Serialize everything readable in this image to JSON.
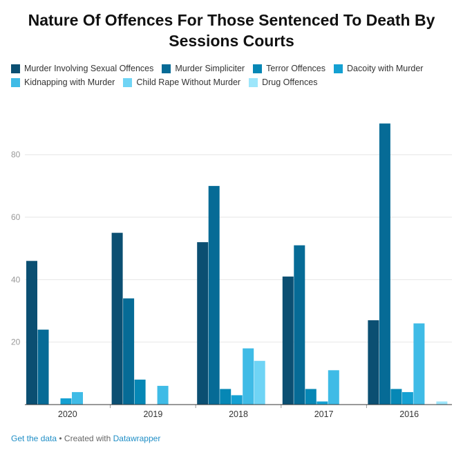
{
  "chart_data": {
    "type": "bar",
    "title": "Nature Of Offences For Those Sentenced To Death By Sessions Courts",
    "categories": [
      "2020",
      "2019",
      "2018",
      "2017",
      "2016"
    ],
    "series": [
      {
        "name": "Murder Involving Sexual Offences",
        "color": "#0b4f72",
        "values": [
          46,
          55,
          52,
          41,
          27
        ]
      },
      {
        "name": "Murder Simpliciter",
        "color": "#066b96",
        "values": [
          24,
          34,
          70,
          51,
          90
        ]
      },
      {
        "name": "Terror Offences",
        "color": "#0687b5",
        "values": [
          0,
          8,
          5,
          5,
          5
        ]
      },
      {
        "name": "Dacoity with Murder",
        "color": "#14a0d2",
        "values": [
          2,
          0,
          3,
          1,
          4
        ]
      },
      {
        "name": "Kidnapping with Murder",
        "color": "#3fbbe6",
        "values": [
          4,
          6,
          18,
          11,
          26
        ]
      },
      {
        "name": "Child Rape Without Murder",
        "color": "#6fd4f5",
        "values": [
          0,
          0,
          14,
          0,
          0
        ]
      },
      {
        "name": "Drug Offences",
        "color": "#9de6fb",
        "values": [
          0,
          0,
          0,
          0,
          1
        ]
      }
    ],
    "y_ticks": [
      20,
      40,
      60,
      80
    ],
    "ylim": [
      0,
      93
    ],
    "grid": true,
    "legend_position": "top"
  },
  "footer": {
    "get_data": "Get the data",
    "created_with": " • Created with ",
    "tool": "Datawrapper"
  }
}
